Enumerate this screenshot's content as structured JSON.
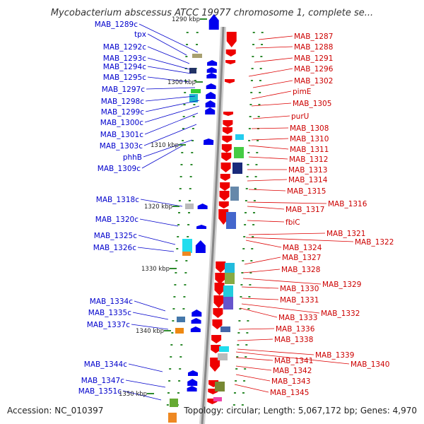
{
  "title": "Mycobacterium abscessus ATCC 19977 chromosome 1, complete se...",
  "footer": {
    "accession": "Accession: NC_010397",
    "topology": "Topology: circular; Length: 5,067,172 bp; Genes: 4,970"
  },
  "colors": {
    "reverse_strand_label": "#0000cc",
    "forward_strand_label": "#cc0000",
    "reverse_gene": "#0000ee",
    "forward_gene": "#ee0000",
    "backbone": "#888888",
    "tick": "#2e8b2e"
  },
  "scale_ticks": [
    "1290 kbp",
    "1300 kbp",
    "1310 kbp",
    "1320 kbp",
    "1330 kbp",
    "1340 kbp",
    "1350 kbp"
  ],
  "left_labels": [
    "MAB_1289c",
    "tpx",
    "MAB_1292c",
    "MAB_1293c",
    "MAB_1294c",
    "MAB_1295c",
    "MAB_1297c",
    "MAB_1298c",
    "MAB_1299c",
    "MAB_1300c",
    "MAB_1301c",
    "MAB_1303c",
    "phhB",
    "MAB_1309c",
    "MAB_1318c",
    "MAB_1320c",
    "MAB_1325c",
    "MAB_1326c",
    "MAB_1334c",
    "MAB_1335c",
    "MAB_1337c",
    "MAB_1344c",
    "MAB_1347c",
    "MAB_1351c"
  ],
  "right_labels": [
    "MAB_1287",
    "MAB_1288",
    "MAB_1291",
    "MAB_1296",
    "MAB_1302",
    "pimE",
    "MAB_1305",
    "purU",
    "MAB_1308",
    "MAB_1310",
    "MAB_1311",
    "MAB_1312",
    "MAB_1313",
    "MAB_1314",
    "MAB_1315",
    "MAB_1316",
    "MAB_1317",
    "fbiC",
    "MAB_1321",
    "MAB_1322",
    "MAB_1324",
    "MAB_1327",
    "MAB_1328",
    "MAB_1329",
    "MAB_1330",
    "MAB_1331",
    "MAB_1332",
    "MAB_1333",
    "MAB_1336",
    "MAB_1338",
    "MAB_1339",
    "MAB_1340",
    "MAB_1341",
    "MAB_1342",
    "MAB_1343",
    "MAB_1345"
  ]
}
